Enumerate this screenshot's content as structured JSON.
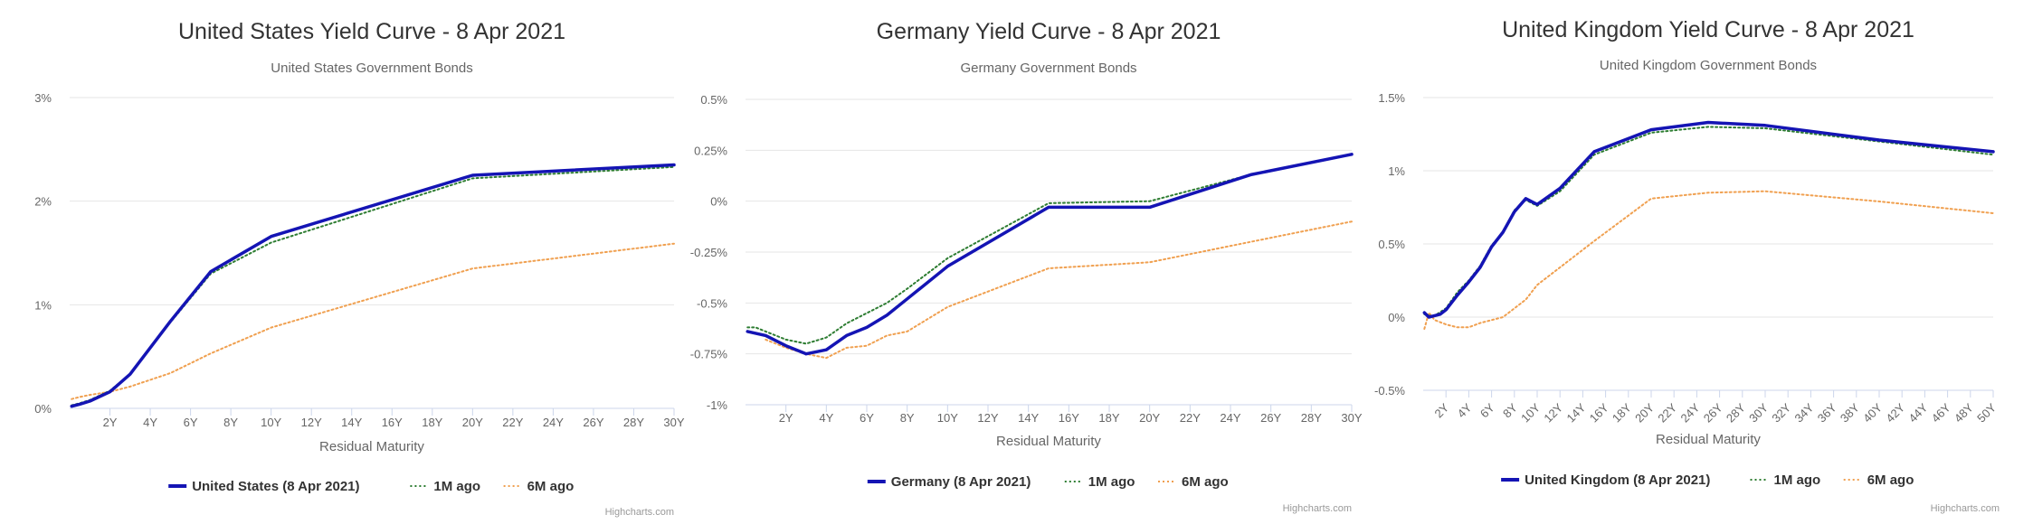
{
  "charts": [
    {
      "chart_data": {
        "type": "line",
        "title": "United States Yield Curve - 8 Apr 2021",
        "subtitle": "United States Government Bonds",
        "xlabel": "Residual Maturity",
        "ylabel": "",
        "tick_labels_x": [
          "2Y",
          "4Y",
          "6Y",
          "8Y",
          "10Y",
          "12Y",
          "14Y",
          "16Y",
          "18Y",
          "20Y",
          "22Y",
          "24Y",
          "26Y",
          "28Y",
          "30Y"
        ],
        "tick_labels_y": [
          "3%",
          "2%",
          "1%",
          "0%"
        ],
        "ylim": [
          0,
          3
        ],
        "x_range": [
          0,
          30
        ],
        "grid": true,
        "legend": "bottom",
        "credits": "Highcharts.com",
        "series": [
          {
            "name": "United States (8 Apr 2021)",
            "color": "#1414b4",
            "style": "solid",
            "points": [
              [
                0.1,
                0.02
              ],
              [
                0.5,
                0.04
              ],
              [
                1,
                0.07
              ],
              [
                2,
                0.16
              ],
              [
                3,
                0.33
              ],
              [
                5,
                0.84
              ],
              [
                7,
                1.32
              ],
              [
                10,
                1.66
              ],
              [
                20,
                2.25
              ],
              [
                30,
                2.35
              ]
            ]
          },
          {
            "name": "1M ago",
            "color": "#2e7d32",
            "style": "dotted",
            "points": [
              [
                0.1,
                0.03
              ],
              [
                0.5,
                0.05
              ],
              [
                1,
                0.08
              ],
              [
                2,
                0.17
              ],
              [
                3,
                0.33
              ],
              [
                5,
                0.83
              ],
              [
                7,
                1.3
              ],
              [
                10,
                1.6
              ],
              [
                20,
                2.22
              ],
              [
                30,
                2.33
              ]
            ]
          },
          {
            "name": "6M ago",
            "color": "#f0a050",
            "style": "dotted",
            "points": [
              [
                0.1,
                0.09
              ],
              [
                0.5,
                0.11
              ],
              [
                1,
                0.13
              ],
              [
                2,
                0.16
              ],
              [
                3,
                0.21
              ],
              [
                5,
                0.34
              ],
              [
                7,
                0.53
              ],
              [
                10,
                0.78
              ],
              [
                20,
                1.35
              ],
              [
                30,
                1.59
              ]
            ]
          }
        ]
      }
    },
    {
      "chart_data": {
        "type": "line",
        "title": "Germany Yield Curve - 8 Apr 2021",
        "subtitle": "Germany Government Bonds",
        "xlabel": "Residual Maturity",
        "ylabel": "",
        "tick_labels_x": [
          "2Y",
          "4Y",
          "6Y",
          "8Y",
          "10Y",
          "12Y",
          "14Y",
          "16Y",
          "18Y",
          "20Y",
          "22Y",
          "24Y",
          "26Y",
          "28Y",
          "30Y"
        ],
        "tick_labels_y": [
          "0.5%",
          "0.25%",
          "0%",
          "-0.25%",
          "-0.5%",
          "-0.75%",
          "-1%"
        ],
        "ylim": [
          -1,
          0.5
        ],
        "x_range": [
          0,
          30
        ],
        "grid": true,
        "legend": "bottom",
        "credits": "Highcharts.com",
        "series": [
          {
            "name": "Germany (8 Apr 2021)",
            "color": "#1414b4",
            "style": "solid",
            "points": [
              [
                0.1,
                -0.64
              ],
              [
                1,
                -0.66
              ],
              [
                2,
                -0.71
              ],
              [
                3,
                -0.75
              ],
              [
                4,
                -0.73
              ],
              [
                5,
                -0.66
              ],
              [
                6,
                -0.62
              ],
              [
                7,
                -0.56
              ],
              [
                8,
                -0.48
              ],
              [
                10,
                -0.32
              ],
              [
                15,
                -0.03
              ],
              [
                20,
                -0.03
              ],
              [
                25,
                0.13
              ],
              [
                30,
                0.23
              ]
            ]
          },
          {
            "name": "1M ago",
            "color": "#2e7d32",
            "style": "dotted",
            "points": [
              [
                0.1,
                -0.62
              ],
              [
                0.5,
                -0.62
              ],
              [
                1,
                -0.64
              ],
              [
                2,
                -0.68
              ],
              [
                3,
                -0.7
              ],
              [
                4,
                -0.67
              ],
              [
                5,
                -0.6
              ],
              [
                6,
                -0.55
              ],
              [
                7,
                -0.5
              ],
              [
                8,
                -0.43
              ],
              [
                10,
                -0.28
              ],
              [
                15,
                -0.01
              ],
              [
                20,
                0.0
              ],
              [
                25,
                0.13
              ],
              [
                30,
                0.23
              ]
            ]
          },
          {
            "name": "6M ago",
            "color": "#f0a050",
            "style": "dotted",
            "points": [
              [
                1,
                -0.68
              ],
              [
                2,
                -0.72
              ],
              [
                3,
                -0.75
              ],
              [
                4,
                -0.77
              ],
              [
                5,
                -0.72
              ],
              [
                6,
                -0.71
              ],
              [
                7,
                -0.66
              ],
              [
                8,
                -0.64
              ],
              [
                10,
                -0.52
              ],
              [
                15,
                -0.33
              ],
              [
                20,
                -0.3
              ],
              [
                25,
                -0.2
              ],
              [
                30,
                -0.1
              ]
            ]
          }
        ]
      }
    },
    {
      "chart_data": {
        "type": "line",
        "title": "United Kingdom Yield Curve - 8 Apr 2021",
        "subtitle": "United Kingdom Government Bonds",
        "xlabel": "Residual Maturity",
        "ylabel": "",
        "tick_labels_x": [
          "2Y",
          "4Y",
          "6Y",
          "8Y",
          "10Y",
          "12Y",
          "14Y",
          "16Y",
          "18Y",
          "20Y",
          "22Y",
          "24Y",
          "26Y",
          "28Y",
          "30Y",
          "32Y",
          "34Y",
          "36Y",
          "38Y",
          "40Y",
          "42Y",
          "44Y",
          "46Y",
          "48Y",
          "50Y"
        ],
        "tick_labels_y": [
          "1.5%",
          "1%",
          "0.5%",
          "0%",
          "-0.5%"
        ],
        "ylim": [
          -0.5,
          1.5
        ],
        "x_range": [
          0,
          50
        ],
        "grid": true,
        "legend": "bottom",
        "credits": "Highcharts.com",
        "series": [
          {
            "name": "United Kingdom (8 Apr 2021)",
            "color": "#1414b4",
            "style": "solid",
            "points": [
              [
                0.1,
                0.03
              ],
              [
                0.5,
                0.0
              ],
              [
                1,
                0.01
              ],
              [
                1.5,
                0.02
              ],
              [
                2,
                0.05
              ],
              [
                3,
                0.15
              ],
              [
                4,
                0.24
              ],
              [
                5,
                0.34
              ],
              [
                6,
                0.48
              ],
              [
                7,
                0.58
              ],
              [
                8,
                0.72
              ],
              [
                9,
                0.81
              ],
              [
                10,
                0.77
              ],
              [
                12,
                0.88
              ],
              [
                15,
                1.13
              ],
              [
                20,
                1.28
              ],
              [
                25,
                1.33
              ],
              [
                30,
                1.31
              ],
              [
                40,
                1.21
              ],
              [
                50,
                1.13
              ]
            ]
          },
          {
            "name": "1M ago",
            "color": "#2e7d32",
            "style": "dotted",
            "points": [
              [
                0.1,
                0.02
              ],
              [
                0.5,
                0.01
              ],
              [
                1,
                0.01
              ],
              [
                2,
                0.06
              ],
              [
                3,
                0.17
              ],
              [
                4,
                0.25
              ],
              [
                5,
                0.35
              ],
              [
                6,
                0.49
              ],
              [
                7,
                0.58
              ],
              [
                8,
                0.73
              ],
              [
                9,
                0.8
              ],
              [
                10,
                0.76
              ],
              [
                12,
                0.86
              ],
              [
                15,
                1.11
              ],
              [
                20,
                1.26
              ],
              [
                25,
                1.3
              ],
              [
                30,
                1.29
              ],
              [
                40,
                1.2
              ],
              [
                50,
                1.11
              ]
            ]
          },
          {
            "name": "6M ago",
            "color": "#f0a050",
            "style": "dotted",
            "points": [
              [
                0.1,
                -0.08
              ],
              [
                0.5,
                0.03
              ],
              [
                1,
                -0.02
              ],
              [
                2,
                -0.05
              ],
              [
                3,
                -0.07
              ],
              [
                4,
                -0.07
              ],
              [
                5,
                -0.04
              ],
              [
                7,
                0.0
              ],
              [
                9,
                0.12
              ],
              [
                10,
                0.22
              ],
              [
                15,
                0.52
              ],
              [
                20,
                0.81
              ],
              [
                25,
                0.85
              ],
              [
                30,
                0.86
              ],
              [
                40,
                0.79
              ],
              [
                50,
                0.71
              ]
            ]
          }
        ]
      }
    }
  ]
}
